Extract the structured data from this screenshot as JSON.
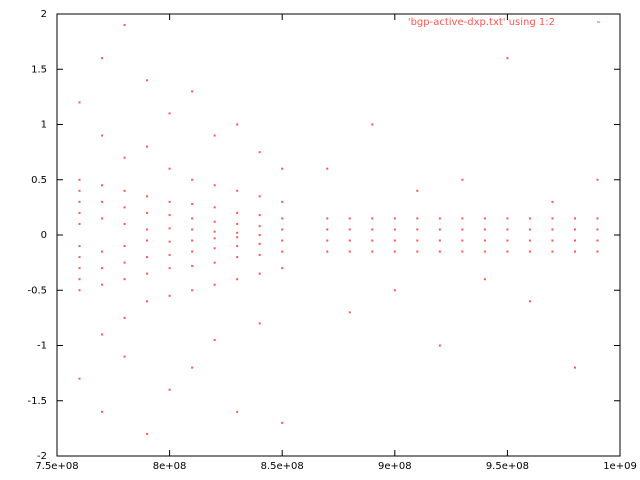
{
  "chart_data": {
    "type": "scatter",
    "xlim": [
      750000000.0,
      1000000000.0
    ],
    "ylim": [
      -2,
      2
    ],
    "xticks": [
      {
        "value": 750000000.0,
        "label": "7.5e+08"
      },
      {
        "value": 800000000.0,
        "label": "8e+08"
      },
      {
        "value": 850000000.0,
        "label": "8.5e+08"
      },
      {
        "value": 900000000.0,
        "label": "9e+08"
      },
      {
        "value": 950000000.0,
        "label": "9.5e+08"
      },
      {
        "value": 1000000000.0,
        "label": "1e+09"
      }
    ],
    "yticks": [
      -2,
      -1.5,
      -1,
      -0.5,
      0,
      0.5,
      1,
      1.5,
      2
    ],
    "x": [
      760000000.0,
      760000000.0,
      760000000.0,
      760000000.0,
      760000000.0,
      760000000.0,
      760000000.0,
      760000000.0,
      760000000.0,
      760000000.0,
      760000000.0,
      760000000.0,
      770000000.0,
      770000000.0,
      770000000.0,
      770000000.0,
      770000000.0,
      770000000.0,
      770000000.0,
      770000000.0,
      770000000.0,
      770000000.0,
      780000000.0,
      780000000.0,
      780000000.0,
      780000000.0,
      780000000.0,
      780000000.0,
      780000000.0,
      780000000.0,
      780000000.0,
      780000000.0,
      790000000.0,
      790000000.0,
      790000000.0,
      790000000.0,
      790000000.0,
      790000000.0,
      790000000.0,
      790000000.0,
      790000000.0,
      790000000.0,
      800000000.0,
      800000000.0,
      800000000.0,
      800000000.0,
      800000000.0,
      800000000.0,
      800000000.0,
      800000000.0,
      800000000.0,
      800000000.0,
      810000000.0,
      810000000.0,
      810000000.0,
      810000000.0,
      810000000.0,
      810000000.0,
      810000000.0,
      810000000.0,
      810000000.0,
      810000000.0,
      820000000.0,
      820000000.0,
      820000000.0,
      820000000.0,
      820000000.0,
      820000000.0,
      820000000.0,
      820000000.0,
      820000000.0,
      820000000.0,
      830000000.0,
      830000000.0,
      830000000.0,
      830000000.0,
      830000000.0,
      830000000.0,
      830000000.0,
      830000000.0,
      830000000.0,
      830000000.0,
      840000000.0,
      840000000.0,
      840000000.0,
      840000000.0,
      840000000.0,
      840000000.0,
      840000000.0,
      840000000.0,
      840000000.0,
      850000000.0,
      850000000.0,
      850000000.0,
      850000000.0,
      850000000.0,
      850000000.0,
      850000000.0,
      850000000.0,
      870000000.0,
      870000000.0,
      870000000.0,
      870000000.0,
      870000000.0,
      880000000.0,
      880000000.0,
      880000000.0,
      880000000.0,
      880000000.0,
      890000000.0,
      890000000.0,
      890000000.0,
      890000000.0,
      890000000.0,
      900000000.0,
      900000000.0,
      900000000.0,
      900000000.0,
      900000000.0,
      910000000.0,
      910000000.0,
      910000000.0,
      910000000.0,
      910000000.0,
      920000000.0,
      920000000.0,
      920000000.0,
      920000000.0,
      920000000.0,
      930000000.0,
      930000000.0,
      930000000.0,
      930000000.0,
      930000000.0,
      940000000.0,
      940000000.0,
      940000000.0,
      940000000.0,
      940000000.0,
      950000000.0,
      950000000.0,
      950000000.0,
      950000000.0,
      950000000.0,
      960000000.0,
      960000000.0,
      960000000.0,
      960000000.0,
      960000000.0,
      970000000.0,
      970000000.0,
      970000000.0,
      970000000.0,
      970000000.0,
      980000000.0,
      980000000.0,
      980000000.0,
      980000000.0,
      980000000.0,
      990000000.0,
      990000000.0,
      990000000.0,
      990000000.0,
      990000000.0
    ],
    "series": [
      {
        "name": "'bgp-active-dxp.txt' using 1:2",
        "color": "#ff5555",
        "values": [
          0.5,
          0.4,
          0.3,
          0.2,
          0.1,
          -0.1,
          -0.2,
          -0.3,
          -0.4,
          -0.5,
          1.2,
          -1.3,
          0.45,
          0.3,
          0.15,
          -0.15,
          -0.3,
          -0.45,
          0.9,
          -0.9,
          1.6,
          -1.6,
          0.4,
          0.25,
          0.1,
          -0.1,
          -0.25,
          -0.4,
          0.7,
          -0.75,
          1.9,
          -1.1,
          0.35,
          0.2,
          0.05,
          -0.05,
          -0.2,
          -0.35,
          0.8,
          -0.6,
          1.4,
          -1.8,
          0.3,
          0.18,
          0.06,
          -0.06,
          -0.18,
          -0.3,
          0.6,
          -0.55,
          1.1,
          -1.4,
          0.28,
          0.15,
          0.05,
          -0.05,
          -0.15,
          -0.28,
          0.5,
          -0.5,
          1.3,
          -1.2,
          0.25,
          0.12,
          0.03,
          -0.03,
          -0.12,
          -0.25,
          0.45,
          -0.45,
          0.9,
          -0.95,
          0.2,
          0.1,
          0.02,
          -0.02,
          -0.1,
          -0.2,
          0.4,
          -0.4,
          1,
          -1.6,
          0.18,
          0.08,
          0,
          -0.08,
          -0.18,
          0.35,
          -0.35,
          0.75,
          -0.8,
          0.15,
          0.05,
          -0.05,
          -0.15,
          0.3,
          -0.3,
          0.6,
          -1.7,
          0.15,
          0.05,
          -0.05,
          -0.15,
          0.6,
          0.15,
          0.05,
          -0.05,
          -0.15,
          -0.7,
          0.15,
          0.05,
          -0.05,
          -0.15,
          1,
          0.15,
          0.05,
          -0.05,
          -0.15,
          -0.5,
          0.15,
          0.05,
          -0.05,
          -0.15,
          0.4,
          0.15,
          0.05,
          -0.05,
          -0.15,
          -1,
          0.15,
          0.05,
          -0.05,
          -0.15,
          0.5,
          0.15,
          0.05,
          -0.05,
          -0.15,
          -0.4,
          0.15,
          0.05,
          -0.05,
          -0.15,
          1.6,
          0.15,
          0.05,
          -0.05,
          -0.15,
          -0.6,
          0.15,
          0.05,
          -0.05,
          -0.15,
          0.3,
          0.15,
          0.05,
          -0.05,
          -0.15,
          -1.2,
          0.15,
          0.05,
          -0.05,
          -0.15,
          0.5
        ]
      }
    ]
  }
}
